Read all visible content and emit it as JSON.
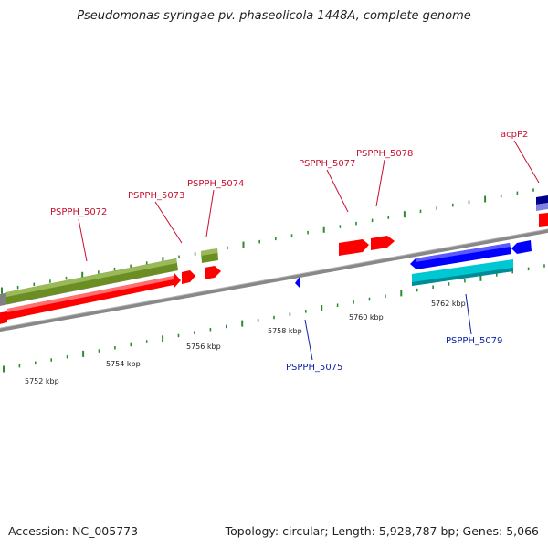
{
  "title": "Pseudomonas syringae pv. phaseolicola 1448A, complete genome",
  "accession": "Accession: NC_005773",
  "stats": "Topology: circular; Length: 5,928,787 bp; Genes: 5,066",
  "ticks": [
    {
      "label": "5752 kbp"
    },
    {
      "label": "5754 kbp"
    },
    {
      "label": "5756 kbp"
    },
    {
      "label": "5758 kbp"
    },
    {
      "label": "5760 kbp"
    },
    {
      "label": "5762 kbp"
    }
  ],
  "genes": [
    {
      "name": "PSPPH_5072",
      "strand": "forward"
    },
    {
      "name": "PSPPH_5073",
      "strand": "forward"
    },
    {
      "name": "PSPPH_5074",
      "strand": "forward"
    },
    {
      "name": "PSPPH_5077",
      "strand": "forward"
    },
    {
      "name": "PSPPH_5078",
      "strand": "forward"
    },
    {
      "name": "acpP2",
      "strand": "forward"
    },
    {
      "name": "PSPPH_5075",
      "strand": "reverse"
    },
    {
      "name": "PSPPH_5079",
      "strand": "reverse"
    }
  ],
  "colors": {
    "backbone": "#8c8c8c",
    "cds_forward": "#ff0000",
    "gene_forward": "#6b8e23",
    "cds_reverse": "#0000ff",
    "gene_reverse": "#00c8d2",
    "tick": "#2e8b2e",
    "label_forward": "#c8102e",
    "label_reverse": "#0b1fa8"
  }
}
